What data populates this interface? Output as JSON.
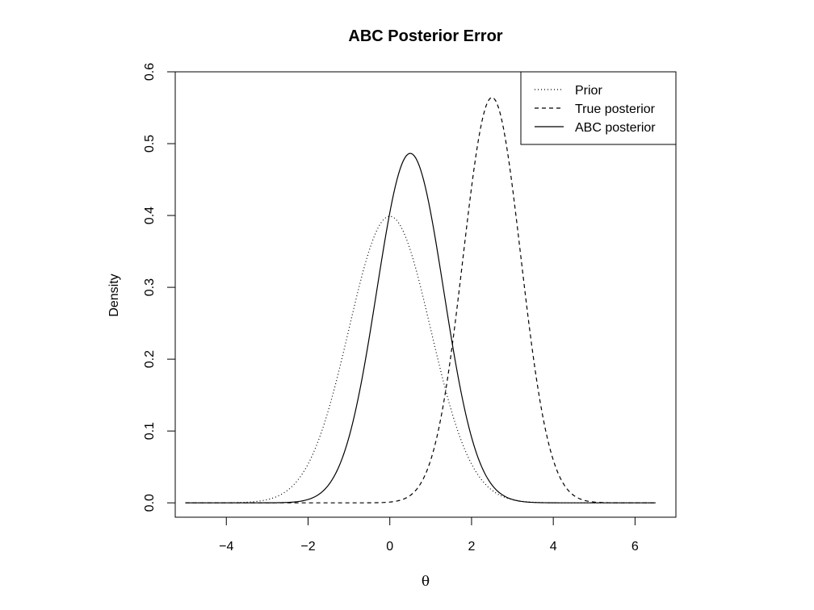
{
  "chart_data": {
    "type": "line",
    "title": "ABC Posterior Error",
    "xlabel": "θ",
    "ylabel": "Density",
    "xlim": [
      -5.25,
      7.0
    ],
    "ylim": [
      -0.02,
      0.6
    ],
    "x_ticks": [
      -4,
      -2,
      0,
      2,
      4,
      6
    ],
    "x_tick_labels": [
      "−4",
      "−2",
      "0",
      "2",
      "4",
      "6"
    ],
    "y_ticks": [
      0.0,
      0.1,
      0.2,
      0.3,
      0.4,
      0.5,
      0.6
    ],
    "y_tick_labels": [
      "0.0",
      "0.1",
      "0.2",
      "0.3",
      "0.4",
      "0.5",
      "0.6"
    ],
    "grid": false,
    "legend_position": "top-right",
    "x_range": [
      -5,
      6.5
    ],
    "series": [
      {
        "name": "Prior",
        "style": "dotted",
        "color": "#000000",
        "distribution": "normal",
        "mean": 0.0,
        "sd": 1.0
      },
      {
        "name": "True posterior",
        "style": "dashed",
        "color": "#000000",
        "distribution": "normal",
        "mean": 2.5,
        "sd": 0.707
      },
      {
        "name": "ABC posterior",
        "style": "solid",
        "color": "#000000",
        "distribution": "normal",
        "mean": 0.5,
        "sd": 0.82
      }
    ]
  }
}
